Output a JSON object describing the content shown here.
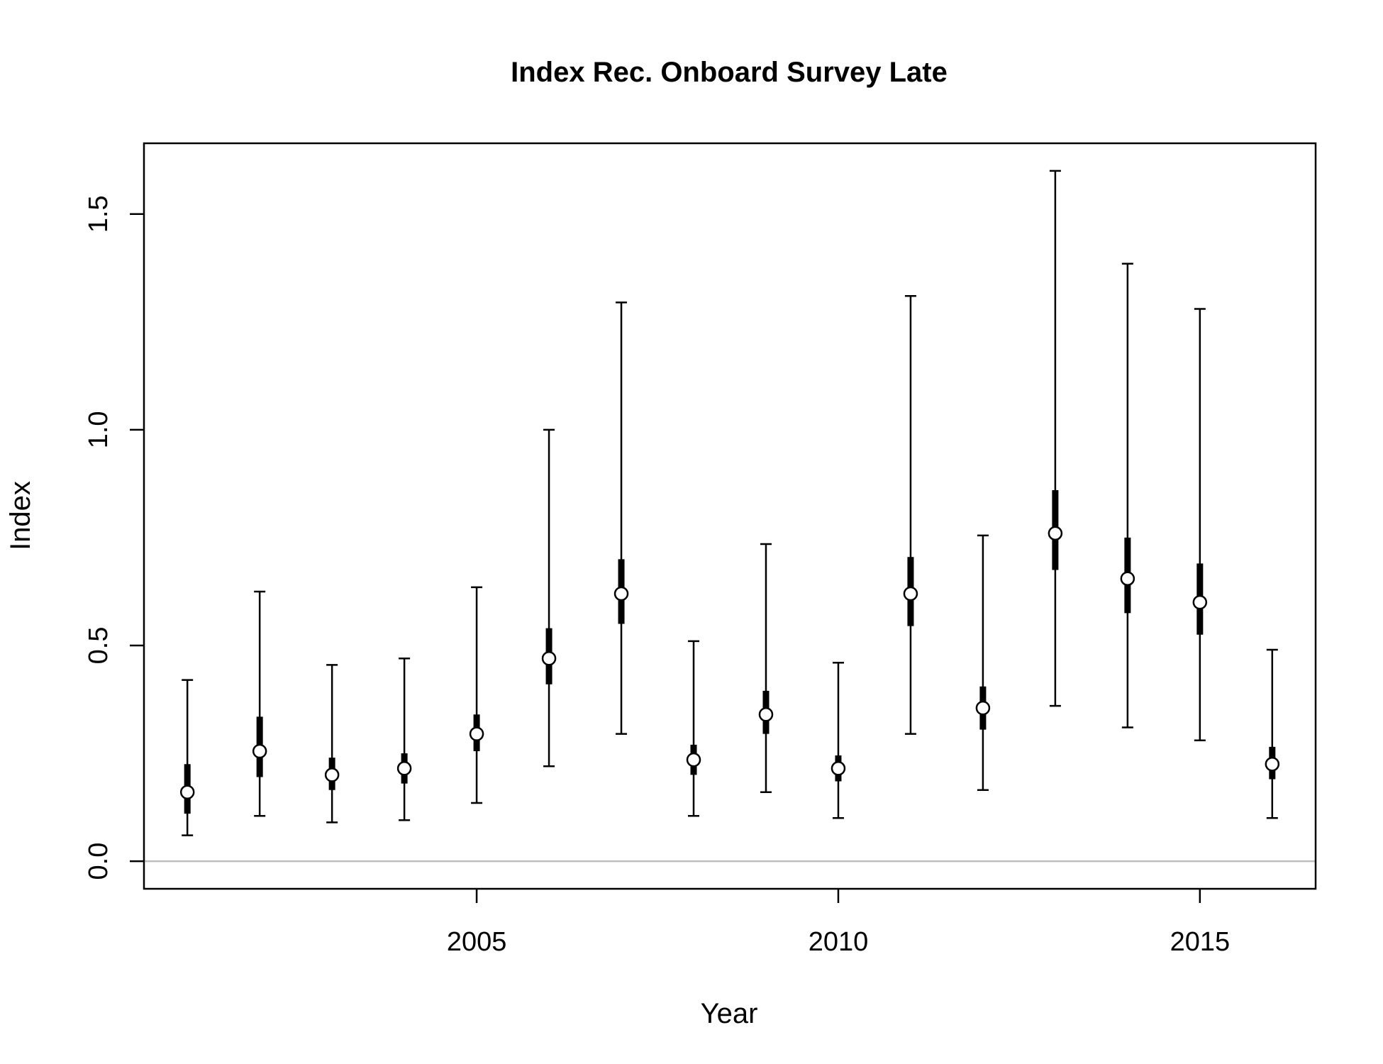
{
  "chart_data": {
    "type": "scatter",
    "title": "Index Rec. Onboard Survey Late",
    "xlabel": "Year",
    "ylabel": "Index",
    "xlim": [
      2000.4,
      2016.6
    ],
    "ylim": [
      -0.064,
      1.664
    ],
    "x_ticks": [
      2005,
      2010,
      2015
    ],
    "x_tick_labels": [
      "2005",
      "2010",
      "2015"
    ],
    "y_ticks": [
      0.0,
      0.5,
      1.0,
      1.5
    ],
    "y_tick_labels": [
      "0.0",
      "0.5",
      "1.0",
      "1.5"
    ],
    "reference_line": {
      "y": 0.0,
      "color": "#bebebe"
    },
    "grid": false,
    "series": [
      {
        "x": [
          2001,
          2002,
          2003,
          2004,
          2005,
          2006,
          2007,
          2008,
          2009,
          2010,
          2011,
          2012,
          2013,
          2014,
          2015,
          2016
        ],
        "y": [
          0.16,
          0.255,
          0.2,
          0.215,
          0.295,
          0.47,
          0.62,
          0.235,
          0.34,
          0.215,
          0.62,
          0.355,
          0.76,
          0.655,
          0.6,
          0.225
        ],
        "ci_outer_low": [
          0.06,
          0.105,
          0.09,
          0.095,
          0.135,
          0.22,
          0.295,
          0.105,
          0.16,
          0.1,
          0.295,
          0.165,
          0.36,
          0.31,
          0.28,
          0.1
        ],
        "ci_outer_high": [
          0.42,
          0.625,
          0.455,
          0.47,
          0.635,
          1.0,
          1.295,
          0.51,
          0.735,
          0.46,
          1.31,
          0.755,
          1.6,
          1.385,
          1.28,
          0.49
        ],
        "ci_inner_low": [
          0.11,
          0.195,
          0.165,
          0.18,
          0.255,
          0.41,
          0.55,
          0.2,
          0.295,
          0.185,
          0.545,
          0.305,
          0.675,
          0.575,
          0.525,
          0.19
        ],
        "ci_inner_high": [
          0.225,
          0.335,
          0.24,
          0.25,
          0.34,
          0.54,
          0.7,
          0.27,
          0.395,
          0.245,
          0.705,
          0.405,
          0.86,
          0.75,
          0.69,
          0.265
        ]
      }
    ]
  }
}
